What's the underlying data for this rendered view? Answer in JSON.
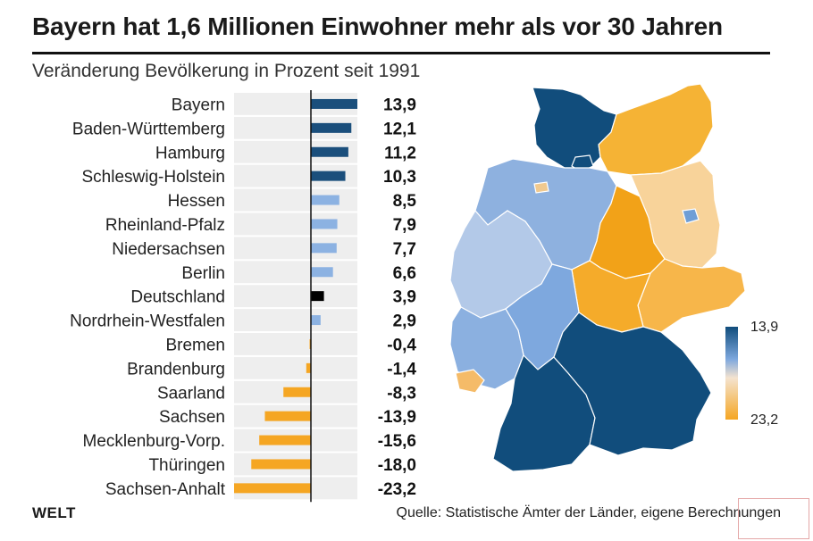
{
  "title": "Bayern hat 1,6 Millionen Einwohner mehr als vor 30 Jahren",
  "subtitle": "Veränderung Bevölkerung in Prozent seit 1991",
  "source": "Quelle: Statistische Ämter der Länder, eigene Berechnungen",
  "logo": "WELT",
  "legend": {
    "top": "13,9",
    "bottom": "23,2"
  },
  "colors": {
    "dark_blue": "#1b4f7c",
    "light_blue": "#8cb2e2",
    "black": "#000000",
    "orange": "#f5a623",
    "track": "#eeeeee"
  },
  "chart_data": [
    {
      "type": "bar",
      "orientation": "horizontal",
      "title": "Bayern hat 1,6 Millionen Einwohner mehr als vor 30 Jahren",
      "subtitle": "Veränderung Bevölkerung in Prozent seit 1991",
      "categories": [
        "Bayern",
        "Baden-Württemberg",
        "Hamburg",
        "Schleswig-Holstein",
        "Hessen",
        "Rheinland-Pfalz",
        "Niedersachsen",
        "Berlin",
        "Deutschland",
        "Nordrhein-Westfalen",
        "Bremen",
        "Brandenburg",
        "Saarland",
        "Sachsen",
        "Mecklenburg-Vorp.",
        "Thüringen",
        "Sachsen-Anhalt"
      ],
      "values": [
        13.9,
        12.1,
        11.2,
        10.3,
        8.5,
        7.9,
        7.7,
        6.6,
        3.9,
        2.9,
        -0.4,
        -1.4,
        -8.3,
        -13.9,
        -15.6,
        -18.0,
        -23.2
      ],
      "value_labels": [
        "13,9",
        "12,1",
        "11,2",
        "10,3",
        "8,5",
        "7,9",
        "7,7",
        "6,6",
        "3,9",
        "2,9",
        "-0,4",
        "-1,4",
        "-8,3",
        "-13,9",
        "-15,6",
        "-18,0",
        "-23,2"
      ],
      "bar_colors": [
        "#1b4f7c",
        "#1b4f7c",
        "#1b4f7c",
        "#1b4f7c",
        "#8cb2e2",
        "#8cb2e2",
        "#8cb2e2",
        "#8cb2e2",
        "#000000",
        "#8cb2e2",
        "#f5a623",
        "#f5a623",
        "#f5a623",
        "#f5a623",
        "#f5a623",
        "#f5a623",
        "#f5a623"
      ],
      "xlim": [
        -23.2,
        13.9
      ],
      "grid": false
    },
    {
      "type": "heatmap",
      "subtype": "choropleth map of German federal states",
      "color_scale": {
        "top_label": "13,9",
        "bottom_label": "23,2",
        "top_color": "#114d7c",
        "bottom_color": "#f5a623"
      }
    }
  ]
}
